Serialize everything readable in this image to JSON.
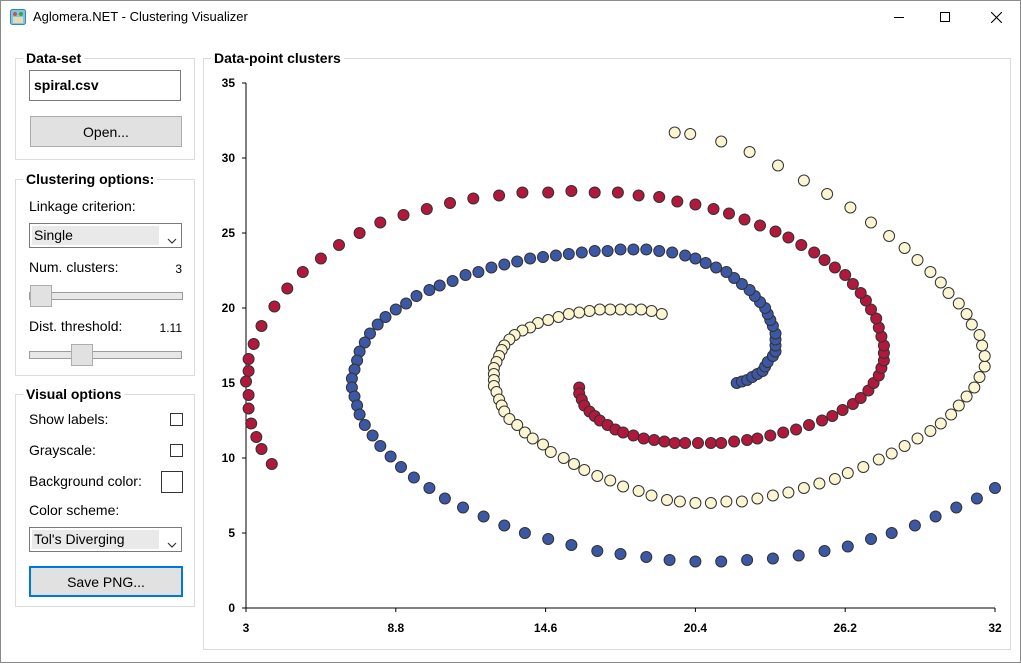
{
  "window": {
    "title": "Aglomera.NET - Clustering Visualizer",
    "icons": [
      "app-icon",
      "minimize-icon",
      "maximize-icon",
      "close-icon"
    ]
  },
  "dataset": {
    "group_title": "Data-set",
    "file_value": "spiral.csv",
    "open_label": "Open..."
  },
  "clustering": {
    "group_title": "Clustering options:",
    "linkage_label": "Linkage criterion:",
    "linkage_value": "Single",
    "num_clusters_label": "Num. clusters:",
    "num_clusters_value": "3",
    "num_clusters_slider_fraction": 0.0,
    "dist_threshold_label": "Dist. threshold:",
    "dist_threshold_value": "1.11",
    "dist_threshold_slider_fraction": 0.31
  },
  "visual": {
    "group_title": "Visual options",
    "show_labels_label": "Show labels:",
    "show_labels_checked": false,
    "grayscale_label": "Grayscale:",
    "grayscale_checked": false,
    "background_color_label": "Background color:",
    "background_color": "#ffffff",
    "color_scheme_label": "Color scheme:",
    "color_scheme_value": "Tol's Diverging",
    "save_label": "Save PNG..."
  },
  "plot": {
    "group_title": "Data-point clusters"
  },
  "chart_data": {
    "type": "scatter",
    "title": "",
    "xlabel": "",
    "ylabel": "",
    "xlim": [
      3,
      32
    ],
    "ylim": [
      0,
      35
    ],
    "x_ticks": [
      "3",
      "8.8",
      "14.6",
      "20.4",
      "26.2",
      "32"
    ],
    "y_ticks": [
      "0",
      "5",
      "10",
      "15",
      "20",
      "25",
      "30",
      "35"
    ],
    "grid": false,
    "legend": "none",
    "marker_edge_color": "#333333",
    "series": [
      {
        "color": "#fbf5d1",
        "points": [
          [
            19.1,
            19.6
          ],
          [
            18.7,
            19.8
          ],
          [
            18.3,
            19.9
          ],
          [
            17.9,
            19.9
          ],
          [
            17.5,
            19.9
          ],
          [
            17.1,
            19.9
          ],
          [
            16.7,
            19.9
          ],
          [
            16.3,
            19.8
          ],
          [
            15.9,
            19.7
          ],
          [
            15.5,
            19.6
          ],
          [
            15.1,
            19.4
          ],
          [
            14.7,
            19.2
          ],
          [
            14.3,
            19.0
          ],
          [
            14.0,
            18.7
          ],
          [
            13.7,
            18.5
          ],
          [
            13.4,
            18.2
          ],
          [
            13.2,
            17.9
          ],
          [
            13.0,
            17.5
          ],
          [
            12.9,
            17.2
          ],
          [
            12.8,
            16.8
          ],
          [
            12.7,
            16.4
          ],
          [
            12.6,
            16.0
          ],
          [
            12.6,
            15.6
          ],
          [
            12.6,
            15.2
          ],
          [
            12.6,
            14.8
          ],
          [
            12.7,
            14.4
          ],
          [
            12.8,
            13.9
          ],
          [
            12.9,
            13.5
          ],
          [
            13.0,
            13.1
          ],
          [
            13.2,
            12.6
          ],
          [
            13.5,
            12.2
          ],
          [
            13.8,
            11.7
          ],
          [
            14.1,
            11.3
          ],
          [
            14.5,
            10.9
          ],
          [
            14.8,
            10.4
          ],
          [
            15.3,
            10.0
          ],
          [
            15.7,
            9.6
          ],
          [
            16.1,
            9.2
          ],
          [
            16.6,
            8.8
          ],
          [
            17.1,
            8.5
          ],
          [
            17.6,
            8.1
          ],
          [
            18.2,
            7.8
          ],
          [
            18.7,
            7.5
          ],
          [
            19.3,
            7.2
          ],
          [
            19.8,
            7.1
          ],
          [
            20.4,
            7.0
          ],
          [
            21.0,
            7.0
          ],
          [
            21.6,
            7.1
          ],
          [
            22.2,
            7.1
          ],
          [
            22.8,
            7.3
          ],
          [
            23.4,
            7.5
          ],
          [
            24.0,
            7.7
          ],
          [
            24.6,
            8.0
          ],
          [
            25.2,
            8.3
          ],
          [
            25.8,
            8.6
          ],
          [
            26.3,
            9.0
          ],
          [
            26.9,
            9.4
          ],
          [
            27.5,
            9.9
          ],
          [
            28.0,
            10.3
          ],
          [
            28.5,
            10.8
          ],
          [
            29.0,
            11.3
          ],
          [
            29.5,
            11.8
          ],
          [
            29.9,
            12.3
          ],
          [
            30.3,
            12.9
          ],
          [
            30.6,
            13.5
          ],
          [
            30.9,
            14.1
          ],
          [
            31.2,
            14.7
          ],
          [
            31.4,
            15.4
          ],
          [
            31.6,
            16.1
          ],
          [
            31.6,
            16.8
          ],
          [
            31.5,
            17.5
          ],
          [
            31.4,
            18.2
          ],
          [
            31.1,
            18.9
          ],
          [
            30.9,
            19.6
          ],
          [
            30.6,
            20.3
          ],
          [
            30.2,
            21.0
          ],
          [
            29.9,
            21.7
          ],
          [
            29.5,
            22.4
          ],
          [
            29.0,
            23.2
          ],
          [
            28.5,
            24.0
          ],
          [
            27.9,
            24.8
          ],
          [
            27.2,
            25.7
          ],
          [
            26.4,
            26.7
          ],
          [
            25.5,
            27.6
          ],
          [
            24.6,
            28.5
          ],
          [
            23.6,
            29.5
          ],
          [
            22.5,
            30.4
          ],
          [
            21.4,
            31.1
          ],
          [
            20.2,
            31.6
          ],
          [
            19.6,
            31.7
          ]
        ]
      },
      {
        "color": "#3c58a4",
        "points": [
          [
            22.0,
            15.0
          ],
          [
            22.2,
            15.1
          ],
          [
            22.4,
            15.2
          ],
          [
            22.6,
            15.4
          ],
          [
            22.8,
            15.6
          ],
          [
            23.0,
            15.8
          ],
          [
            23.1,
            16.1
          ],
          [
            23.2,
            16.4
          ],
          [
            23.4,
            16.8
          ],
          [
            23.5,
            17.1
          ],
          [
            23.5,
            17.5
          ],
          [
            23.5,
            17.9
          ],
          [
            23.5,
            18.3
          ],
          [
            23.4,
            18.8
          ],
          [
            23.3,
            19.2
          ],
          [
            23.2,
            19.6
          ],
          [
            23.1,
            20.0
          ],
          [
            22.9,
            20.4
          ],
          [
            22.7,
            20.8
          ],
          [
            22.5,
            21.2
          ],
          [
            22.2,
            21.6
          ],
          [
            21.9,
            22.0
          ],
          [
            21.6,
            22.4
          ],
          [
            21.2,
            22.7
          ],
          [
            20.8,
            23.0
          ],
          [
            20.4,
            23.3
          ],
          [
            20.0,
            23.5
          ],
          [
            19.5,
            23.7
          ],
          [
            19.0,
            23.8
          ],
          [
            18.5,
            23.9
          ],
          [
            18.0,
            23.9
          ],
          [
            17.5,
            23.9
          ],
          [
            17.0,
            23.8
          ],
          [
            16.5,
            23.8
          ],
          [
            16.0,
            23.7
          ],
          [
            15.5,
            23.6
          ],
          [
            15.0,
            23.5
          ],
          [
            14.5,
            23.4
          ],
          [
            14.0,
            23.3
          ],
          [
            13.5,
            23.1
          ],
          [
            13.0,
            22.9
          ],
          [
            12.5,
            22.7
          ],
          [
            12.0,
            22.4
          ],
          [
            11.5,
            22.2
          ],
          [
            11.0,
            21.8
          ],
          [
            10.5,
            21.5
          ],
          [
            10.1,
            21.2
          ],
          [
            9.6,
            20.8
          ],
          [
            9.2,
            20.3
          ],
          [
            8.8,
            19.9
          ],
          [
            8.4,
            19.4
          ],
          [
            8.1,
            18.9
          ],
          [
            7.8,
            18.3
          ],
          [
            7.6,
            17.7
          ],
          [
            7.4,
            17.1
          ],
          [
            7.3,
            16.5
          ],
          [
            7.2,
            15.9
          ],
          [
            7.1,
            15.3
          ],
          [
            7.1,
            14.7
          ],
          [
            7.2,
            14.1
          ],
          [
            7.3,
            13.5
          ],
          [
            7.4,
            12.9
          ],
          [
            7.6,
            12.2
          ],
          [
            7.9,
            11.5
          ],
          [
            8.2,
            10.8
          ],
          [
            8.6,
            10.1
          ],
          [
            9.0,
            9.4
          ],
          [
            9.5,
            8.7
          ],
          [
            10.1,
            8.0
          ],
          [
            10.7,
            7.3
          ],
          [
            11.4,
            6.7
          ],
          [
            12.2,
            6.1
          ],
          [
            13.0,
            5.5
          ],
          [
            13.8,
            5.0
          ],
          [
            14.7,
            4.6
          ],
          [
            15.6,
            4.2
          ],
          [
            16.6,
            3.8
          ],
          [
            17.5,
            3.6
          ],
          [
            18.5,
            3.4
          ],
          [
            19.4,
            3.2
          ],
          [
            20.4,
            3.1
          ],
          [
            21.4,
            3.1
          ],
          [
            22.4,
            3.2
          ],
          [
            23.4,
            3.3
          ],
          [
            24.4,
            3.5
          ],
          [
            25.4,
            3.8
          ],
          [
            26.3,
            4.1
          ],
          [
            27.2,
            4.6
          ],
          [
            28.0,
            5.0
          ],
          [
            28.9,
            5.5
          ],
          [
            29.7,
            6.1
          ],
          [
            30.5,
            6.7
          ],
          [
            31.3,
            7.3
          ],
          [
            32.0,
            8.0
          ]
        ]
      },
      {
        "color": "#b2183b",
        "points": [
          [
            15.9,
            14.7
          ],
          [
            15.9,
            14.3
          ],
          [
            16.0,
            13.9
          ],
          [
            16.1,
            13.5
          ],
          [
            16.3,
            13.1
          ],
          [
            16.5,
            12.8
          ],
          [
            16.7,
            12.5
          ],
          [
            17.0,
            12.2
          ],
          [
            17.3,
            11.9
          ],
          [
            17.6,
            11.7
          ],
          [
            18.0,
            11.5
          ],
          [
            18.4,
            11.3
          ],
          [
            18.8,
            11.2
          ],
          [
            19.2,
            11.1
          ],
          [
            19.6,
            11.0
          ],
          [
            20.0,
            11.0
          ],
          [
            20.5,
            11.0
          ],
          [
            21.0,
            11.0
          ],
          [
            21.4,
            11.0
          ],
          [
            21.9,
            11.1
          ],
          [
            22.4,
            11.2
          ],
          [
            22.8,
            11.3
          ],
          [
            23.3,
            11.5
          ],
          [
            23.8,
            11.7
          ],
          [
            24.3,
            11.9
          ],
          [
            24.8,
            12.2
          ],
          [
            25.3,
            12.5
          ],
          [
            25.7,
            12.8
          ],
          [
            26.1,
            13.2
          ],
          [
            26.5,
            13.6
          ],
          [
            26.8,
            14.0
          ],
          [
            27.1,
            14.5
          ],
          [
            27.3,
            15.0
          ],
          [
            27.5,
            15.5
          ],
          [
            27.6,
            16.0
          ],
          [
            27.7,
            16.5
          ],
          [
            27.7,
            17.0
          ],
          [
            27.7,
            17.5
          ],
          [
            27.6,
            18.1
          ],
          [
            27.5,
            18.7
          ],
          [
            27.4,
            19.3
          ],
          [
            27.2,
            19.9
          ],
          [
            27.0,
            20.5
          ],
          [
            26.8,
            21.0
          ],
          [
            26.5,
            21.6
          ],
          [
            26.2,
            22.2
          ],
          [
            25.8,
            22.7
          ],
          [
            25.4,
            23.2
          ],
          [
            25.0,
            23.7
          ],
          [
            24.5,
            24.2
          ],
          [
            24.0,
            24.7
          ],
          [
            23.5,
            25.1
          ],
          [
            22.9,
            25.5
          ],
          [
            22.3,
            25.9
          ],
          [
            21.7,
            26.3
          ],
          [
            21.1,
            26.6
          ],
          [
            20.4,
            26.9
          ],
          [
            19.7,
            27.1
          ],
          [
            19.0,
            27.4
          ],
          [
            18.2,
            27.5
          ],
          [
            17.4,
            27.7
          ],
          [
            16.5,
            27.7
          ],
          [
            15.6,
            27.8
          ],
          [
            14.7,
            27.7
          ],
          [
            13.7,
            27.7
          ],
          [
            12.8,
            27.5
          ],
          [
            11.8,
            27.3
          ],
          [
            10.9,
            27.0
          ],
          [
            10.0,
            26.6
          ],
          [
            9.1,
            26.2
          ],
          [
            8.2,
            25.7
          ],
          [
            7.4,
            25.0
          ],
          [
            6.6,
            24.2
          ],
          [
            5.9,
            23.3
          ],
          [
            5.2,
            22.4
          ],
          [
            4.6,
            21.3
          ],
          [
            4.1,
            20.1
          ],
          [
            3.6,
            18.8
          ],
          [
            3.3,
            17.6
          ],
          [
            3.1,
            16.6
          ],
          [
            3.1,
            15.8
          ],
          [
            3.0,
            15.1
          ],
          [
            3.1,
            14.2
          ],
          [
            3.1,
            13.3
          ],
          [
            3.2,
            12.3
          ],
          [
            3.4,
            11.4
          ],
          [
            3.6,
            10.6
          ],
          [
            4.0,
            9.6
          ]
        ]
      }
    ]
  }
}
